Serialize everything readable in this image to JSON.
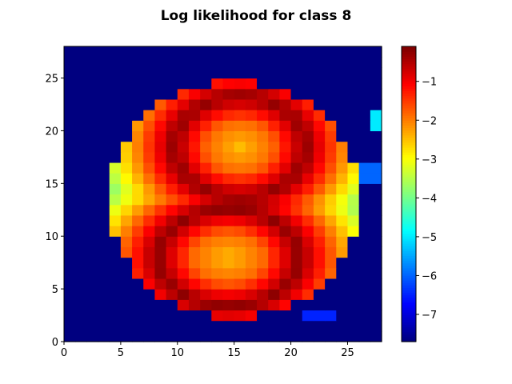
{
  "chart_data": {
    "type": "heatmap",
    "title": "Log likelihood for class 8",
    "colormap": "jet",
    "xlim": [
      0,
      28
    ],
    "ylim": [
      0,
      28
    ],
    "xticks": [
      0,
      5,
      10,
      15,
      20,
      25
    ],
    "yticks": [
      0,
      5,
      10,
      15,
      20,
      25
    ],
    "colorbar": {
      "vmin": -7.7,
      "vmax": -0.1,
      "ticks": [
        -7,
        -6,
        -5,
        -4,
        -3,
        -2,
        -1
      ]
    },
    "shape": {
      "type": "digit-8",
      "background": -7.7,
      "peak": -0.2
    }
  }
}
